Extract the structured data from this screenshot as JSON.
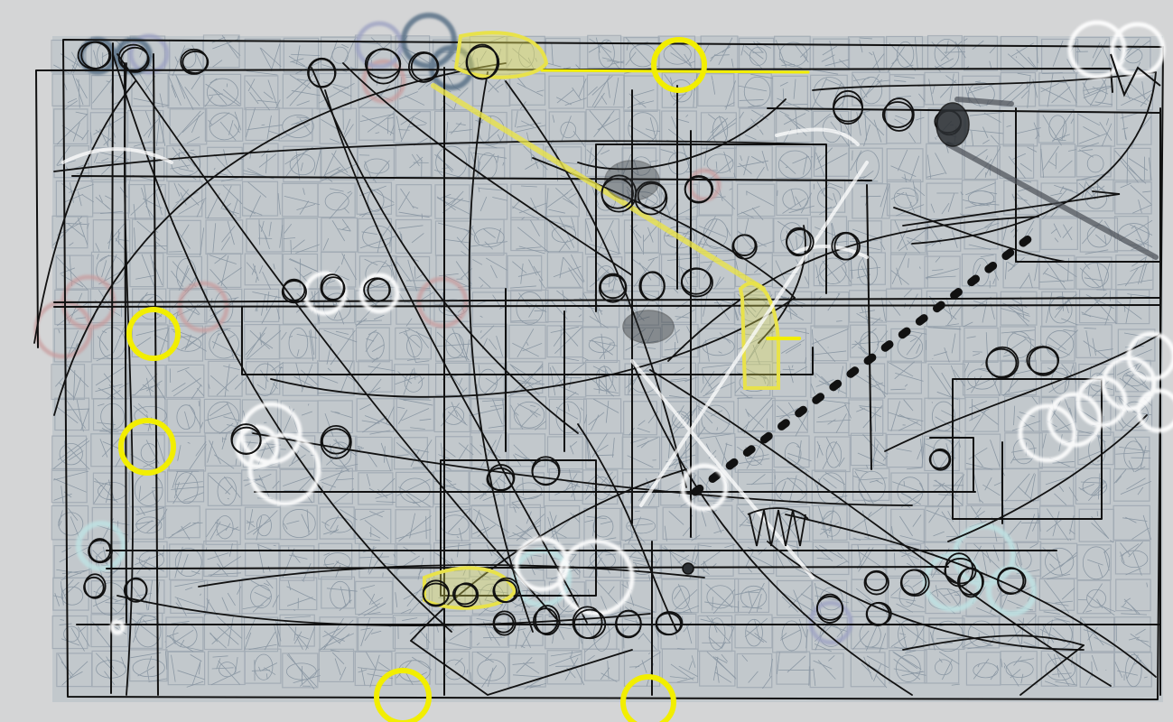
{
  "palette": {
    "background": "#d4d5d6",
    "grid_tint": "#6f7f8f",
    "ink": "#111111",
    "yellow": "#f2ee00",
    "yellow_glow": "#e8e24a",
    "white": "#ffffff",
    "pink": "#c99a9c",
    "cyan": "#bfe2e3",
    "blue": "#5b7388",
    "lavender": "#9ea3c4"
  }
}
